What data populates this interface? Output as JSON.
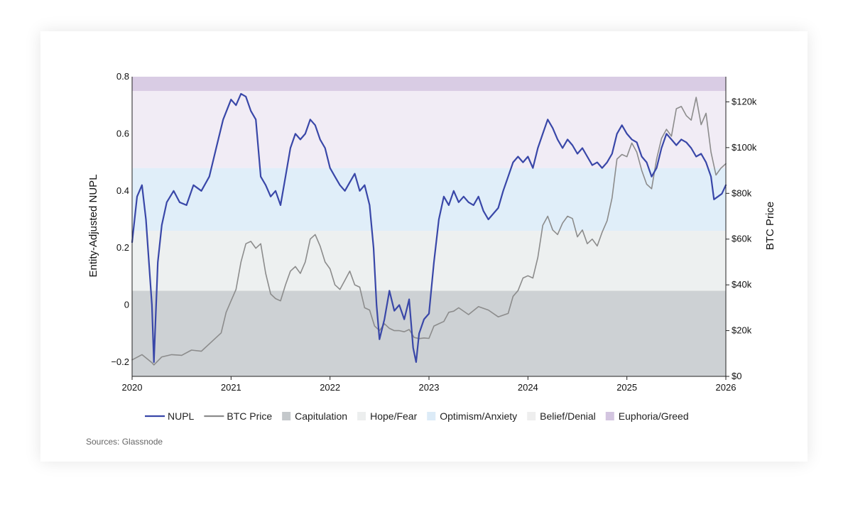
{
  "chart_data": {
    "type": "line",
    "title": "",
    "source": "Sources: Glassnode",
    "y_left_label": "Entity-Adjusted NUPL",
    "y_right_label": "BTC Price",
    "x_ticks": [
      "2020",
      "2021",
      "2022",
      "2023",
      "2024",
      "2025",
      "2026"
    ],
    "x_range": [
      2020.0,
      2026.0
    ],
    "y_left_ticks": [
      {
        "value": 0.8,
        "label": "0.8"
      },
      {
        "value": 0.6,
        "label": "0.6"
      },
      {
        "value": 0.4,
        "label": "0.4"
      },
      {
        "value": 0.2,
        "label": "0.2"
      },
      {
        "value": 0.0,
        "label": "0"
      },
      {
        "value": -0.2,
        "label": "−0.2"
      }
    ],
    "y_left_range": [
      -0.25,
      0.8
    ],
    "y_right_ticks": [
      {
        "value": 120000,
        "label": "$120k"
      },
      {
        "value": 100000,
        "label": "$100k"
      },
      {
        "value": 80000,
        "label": "$80k"
      },
      {
        "value": 60000,
        "label": "$60k"
      },
      {
        "value": 40000,
        "label": "$40k"
      },
      {
        "value": 20000,
        "label": "$20k"
      },
      {
        "value": 0,
        "label": "$0"
      }
    ],
    "y_right_range": [
      0,
      131000
    ],
    "zones": [
      {
        "name": "Capitulation",
        "from": -0.25,
        "to": 0.05,
        "color": "#cdd1d4"
      },
      {
        "name": "Hope/Fear",
        "from": 0.05,
        "to": 0.26,
        "color": "#edf0f0"
      },
      {
        "name": "Optimism/Anxiety",
        "from": 0.26,
        "to": 0.48,
        "color": "#e0eef9"
      },
      {
        "name": "Belief/Denial",
        "from": 0.48,
        "to": 0.75,
        "color": "#f1ecf5"
      },
      {
        "name": "Euphoria/Greed",
        "from": 0.75,
        "to": 0.8,
        "color": "#d9cce4"
      }
    ],
    "series": [
      {
        "name": "NUPL",
        "axis": "left",
        "color": "#3947a8",
        "x": [
          2020.0,
          2020.05,
          2020.1,
          2020.14,
          2020.2,
          2020.22,
          2020.26,
          2020.3,
          2020.35,
          2020.42,
          2020.48,
          2020.55,
          2020.62,
          2020.7,
          2020.78,
          2020.85,
          2020.92,
          2021.0,
          2021.05,
          2021.1,
          2021.15,
          2021.2,
          2021.25,
          2021.3,
          2021.35,
          2021.4,
          2021.45,
          2021.5,
          2021.55,
          2021.6,
          2021.65,
          2021.7,
          2021.75,
          2021.8,
          2021.85,
          2021.9,
          2021.95,
          2022.0,
          2022.05,
          2022.1,
          2022.15,
          2022.2,
          2022.25,
          2022.3,
          2022.35,
          2022.4,
          2022.44,
          2022.47,
          2022.5,
          2022.55,
          2022.6,
          2022.65,
          2022.7,
          2022.75,
          2022.8,
          2022.84,
          2022.87,
          2022.9,
          2022.95,
          2023.0,
          2023.05,
          2023.1,
          2023.15,
          2023.2,
          2023.25,
          2023.3,
          2023.35,
          2023.4,
          2023.45,
          2023.5,
          2023.55,
          2023.6,
          2023.65,
          2023.7,
          2023.75,
          2023.8,
          2023.85,
          2023.9,
          2023.95,
          2024.0,
          2024.05,
          2024.1,
          2024.15,
          2024.2,
          2024.25,
          2024.3,
          2024.35,
          2024.4,
          2024.45,
          2024.5,
          2024.55,
          2024.6,
          2024.65,
          2024.7,
          2024.75,
          2024.8,
          2024.85,
          2024.9,
          2024.95,
          2025.0,
          2025.05,
          2025.1,
          2025.15,
          2025.2,
          2025.25,
          2025.3,
          2025.35,
          2025.4,
          2025.45,
          2025.5,
          2025.55,
          2025.6,
          2025.65,
          2025.7,
          2025.75,
          2025.8,
          2025.85,
          2025.88,
          2025.92,
          2025.96,
          2026.0
        ],
        "y": [
          0.22,
          0.38,
          0.42,
          0.3,
          0.0,
          -0.2,
          0.15,
          0.28,
          0.36,
          0.4,
          0.36,
          0.35,
          0.42,
          0.4,
          0.45,
          0.55,
          0.65,
          0.72,
          0.7,
          0.74,
          0.73,
          0.68,
          0.65,
          0.45,
          0.42,
          0.38,
          0.4,
          0.35,
          0.45,
          0.55,
          0.6,
          0.58,
          0.6,
          0.65,
          0.63,
          0.58,
          0.55,
          0.48,
          0.45,
          0.42,
          0.4,
          0.43,
          0.46,
          0.4,
          0.42,
          0.35,
          0.2,
          0.0,
          -0.12,
          -0.05,
          0.05,
          -0.02,
          0.0,
          -0.05,
          0.02,
          -0.15,
          -0.2,
          -0.1,
          -0.05,
          -0.03,
          0.15,
          0.3,
          0.38,
          0.35,
          0.4,
          0.36,
          0.38,
          0.36,
          0.35,
          0.38,
          0.33,
          0.3,
          0.32,
          0.34,
          0.4,
          0.45,
          0.5,
          0.52,
          0.5,
          0.52,
          0.48,
          0.55,
          0.6,
          0.65,
          0.62,
          0.58,
          0.55,
          0.58,
          0.56,
          0.53,
          0.55,
          0.52,
          0.49,
          0.5,
          0.48,
          0.5,
          0.53,
          0.6,
          0.63,
          0.6,
          0.58,
          0.57,
          0.52,
          0.5,
          0.45,
          0.48,
          0.55,
          0.6,
          0.58,
          0.56,
          0.58,
          0.57,
          0.55,
          0.52,
          0.53,
          0.5,
          0.45,
          0.37,
          0.38,
          0.39,
          0.42
        ]
      },
      {
        "name": "BTC Price",
        "axis": "right",
        "color": "#8c8c8c",
        "x": [
          2020.0,
          2020.1,
          2020.2,
          2020.22,
          2020.3,
          2020.4,
          2020.5,
          2020.6,
          2020.7,
          2020.8,
          2020.9,
          2020.95,
          2021.0,
          2021.05,
          2021.1,
          2021.15,
          2021.2,
          2021.25,
          2021.3,
          2021.35,
          2021.4,
          2021.45,
          2021.5,
          2021.55,
          2021.6,
          2021.65,
          2021.7,
          2021.75,
          2021.8,
          2021.85,
          2021.9,
          2021.95,
          2022.0,
          2022.05,
          2022.1,
          2022.15,
          2022.2,
          2022.25,
          2022.3,
          2022.35,
          2022.4,
          2022.45,
          2022.5,
          2022.55,
          2022.6,
          2022.65,
          2022.7,
          2022.75,
          2022.8,
          2022.85,
          2022.9,
          2022.95,
          2023.0,
          2023.05,
          2023.1,
          2023.15,
          2023.2,
          2023.25,
          2023.3,
          2023.4,
          2023.5,
          2023.6,
          2023.7,
          2023.8,
          2023.85,
          2023.9,
          2023.95,
          2024.0,
          2024.05,
          2024.1,
          2024.15,
          2024.2,
          2024.25,
          2024.3,
          2024.35,
          2024.4,
          2024.45,
          2024.5,
          2024.55,
          2024.6,
          2024.65,
          2024.7,
          2024.75,
          2024.8,
          2024.85,
          2024.9,
          2024.95,
          2025.0,
          2025.05,
          2025.1,
          2025.15,
          2025.2,
          2025.25,
          2025.3,
          2025.35,
          2025.4,
          2025.45,
          2025.5,
          2025.55,
          2025.6,
          2025.65,
          2025.7,
          2025.75,
          2025.8,
          2025.85,
          2025.9,
          2025.95,
          2026.0
        ],
        "y": [
          7200,
          9500,
          6000,
          5000,
          8500,
          9500,
          9200,
          11500,
          11000,
          15000,
          19000,
          28000,
          33000,
          38000,
          50000,
          58000,
          59000,
          56000,
          58000,
          45000,
          36000,
          34000,
          33000,
          40000,
          46000,
          48000,
          45000,
          50000,
          60000,
          62000,
          57000,
          50000,
          47000,
          40000,
          38000,
          42000,
          46000,
          40000,
          39000,
          30000,
          29000,
          22000,
          20000,
          23000,
          21000,
          20000,
          20000,
          19500,
          20500,
          17000,
          16500,
          16800,
          16600,
          22000,
          23000,
          24000,
          28000,
          28500,
          30000,
          27000,
          30500,
          29000,
          26000,
          27500,
          35000,
          37500,
          43000,
          44000,
          43000,
          52000,
          66000,
          70000,
          64000,
          62000,
          67000,
          70000,
          69000,
          61000,
          64000,
          58000,
          60000,
          57000,
          63000,
          68000,
          78000,
          95000,
          97000,
          96000,
          102000,
          98000,
          90000,
          84000,
          82000,
          95000,
          104000,
          108000,
          105000,
          117000,
          118000,
          114000,
          112000,
          122000,
          110000,
          115000,
          98000,
          88000,
          91000,
          93000
        ]
      }
    ],
    "legend": [
      {
        "label": "NUPL",
        "kind": "line",
        "color": "#3947a8"
      },
      {
        "label": "BTC Price",
        "kind": "line",
        "color": "#8c8c8c"
      },
      {
        "label": "Capitulation",
        "kind": "box",
        "color": "#c4c8cb"
      },
      {
        "label": "Hope/Fear",
        "kind": "box",
        "color": "#eceeee"
      },
      {
        "label": "Optimism/Anxiety",
        "kind": "box",
        "color": "#dcebf7"
      },
      {
        "label": "Belief/Denial",
        "kind": "box",
        "color": "#eeeeee"
      },
      {
        "label": "Euphoria/Greed",
        "kind": "box",
        "color": "#d3c5e0"
      }
    ],
    "legend_position": "bottom",
    "grid": false
  }
}
